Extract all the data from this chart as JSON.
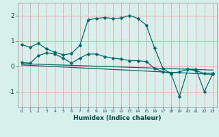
{
  "xlabel": "Humidex (Indice chaleur)",
  "ylabel": "",
  "bg_color": "#d8f0ec",
  "grid_color": "#f5a8a8",
  "line_color": "#006868",
  "xlim": [
    -0.5,
    23.5
  ],
  "ylim": [
    -1.6,
    2.5
  ],
  "yticks": [
    -1,
    0,
    1,
    2
  ],
  "xticks": [
    0,
    1,
    2,
    3,
    4,
    5,
    6,
    7,
    8,
    9,
    10,
    11,
    12,
    13,
    14,
    15,
    16,
    17,
    18,
    19,
    20,
    21,
    22,
    23
  ],
  "line1_x": [
    0,
    1,
    2,
    3,
    4,
    5,
    6,
    7,
    8,
    9,
    10,
    11,
    12,
    13,
    14,
    15,
    16,
    17,
    18,
    19,
    20,
    21,
    22,
    23
  ],
  "line1_y": [
    0.85,
    0.75,
    0.9,
    0.68,
    0.55,
    0.45,
    0.5,
    0.82,
    1.83,
    1.88,
    1.92,
    1.88,
    1.9,
    2.0,
    1.88,
    1.62,
    0.72,
    -0.08,
    -0.3,
    -1.2,
    -0.12,
    -0.12,
    -1.0,
    -0.3
  ],
  "line2_x": [
    0,
    1,
    2,
    3,
    4,
    5,
    6,
    7,
    8,
    9,
    10,
    11,
    12,
    13,
    14,
    15,
    16,
    17,
    18,
    19,
    20,
    21,
    22,
    23
  ],
  "line2_y": [
    0.15,
    0.12,
    0.42,
    0.52,
    0.48,
    0.32,
    0.12,
    0.32,
    0.48,
    0.48,
    0.38,
    0.32,
    0.28,
    0.22,
    0.22,
    0.18,
    -0.08,
    -0.22,
    -0.28,
    -0.22,
    -0.12,
    -0.18,
    -0.28,
    -0.28
  ],
  "line3_x": [
    0,
    23
  ],
  "line3_y": [
    0.1,
    -0.15
  ],
  "line4_x": [
    0,
    23
  ],
  "line4_y": [
    0.05,
    -0.32
  ]
}
